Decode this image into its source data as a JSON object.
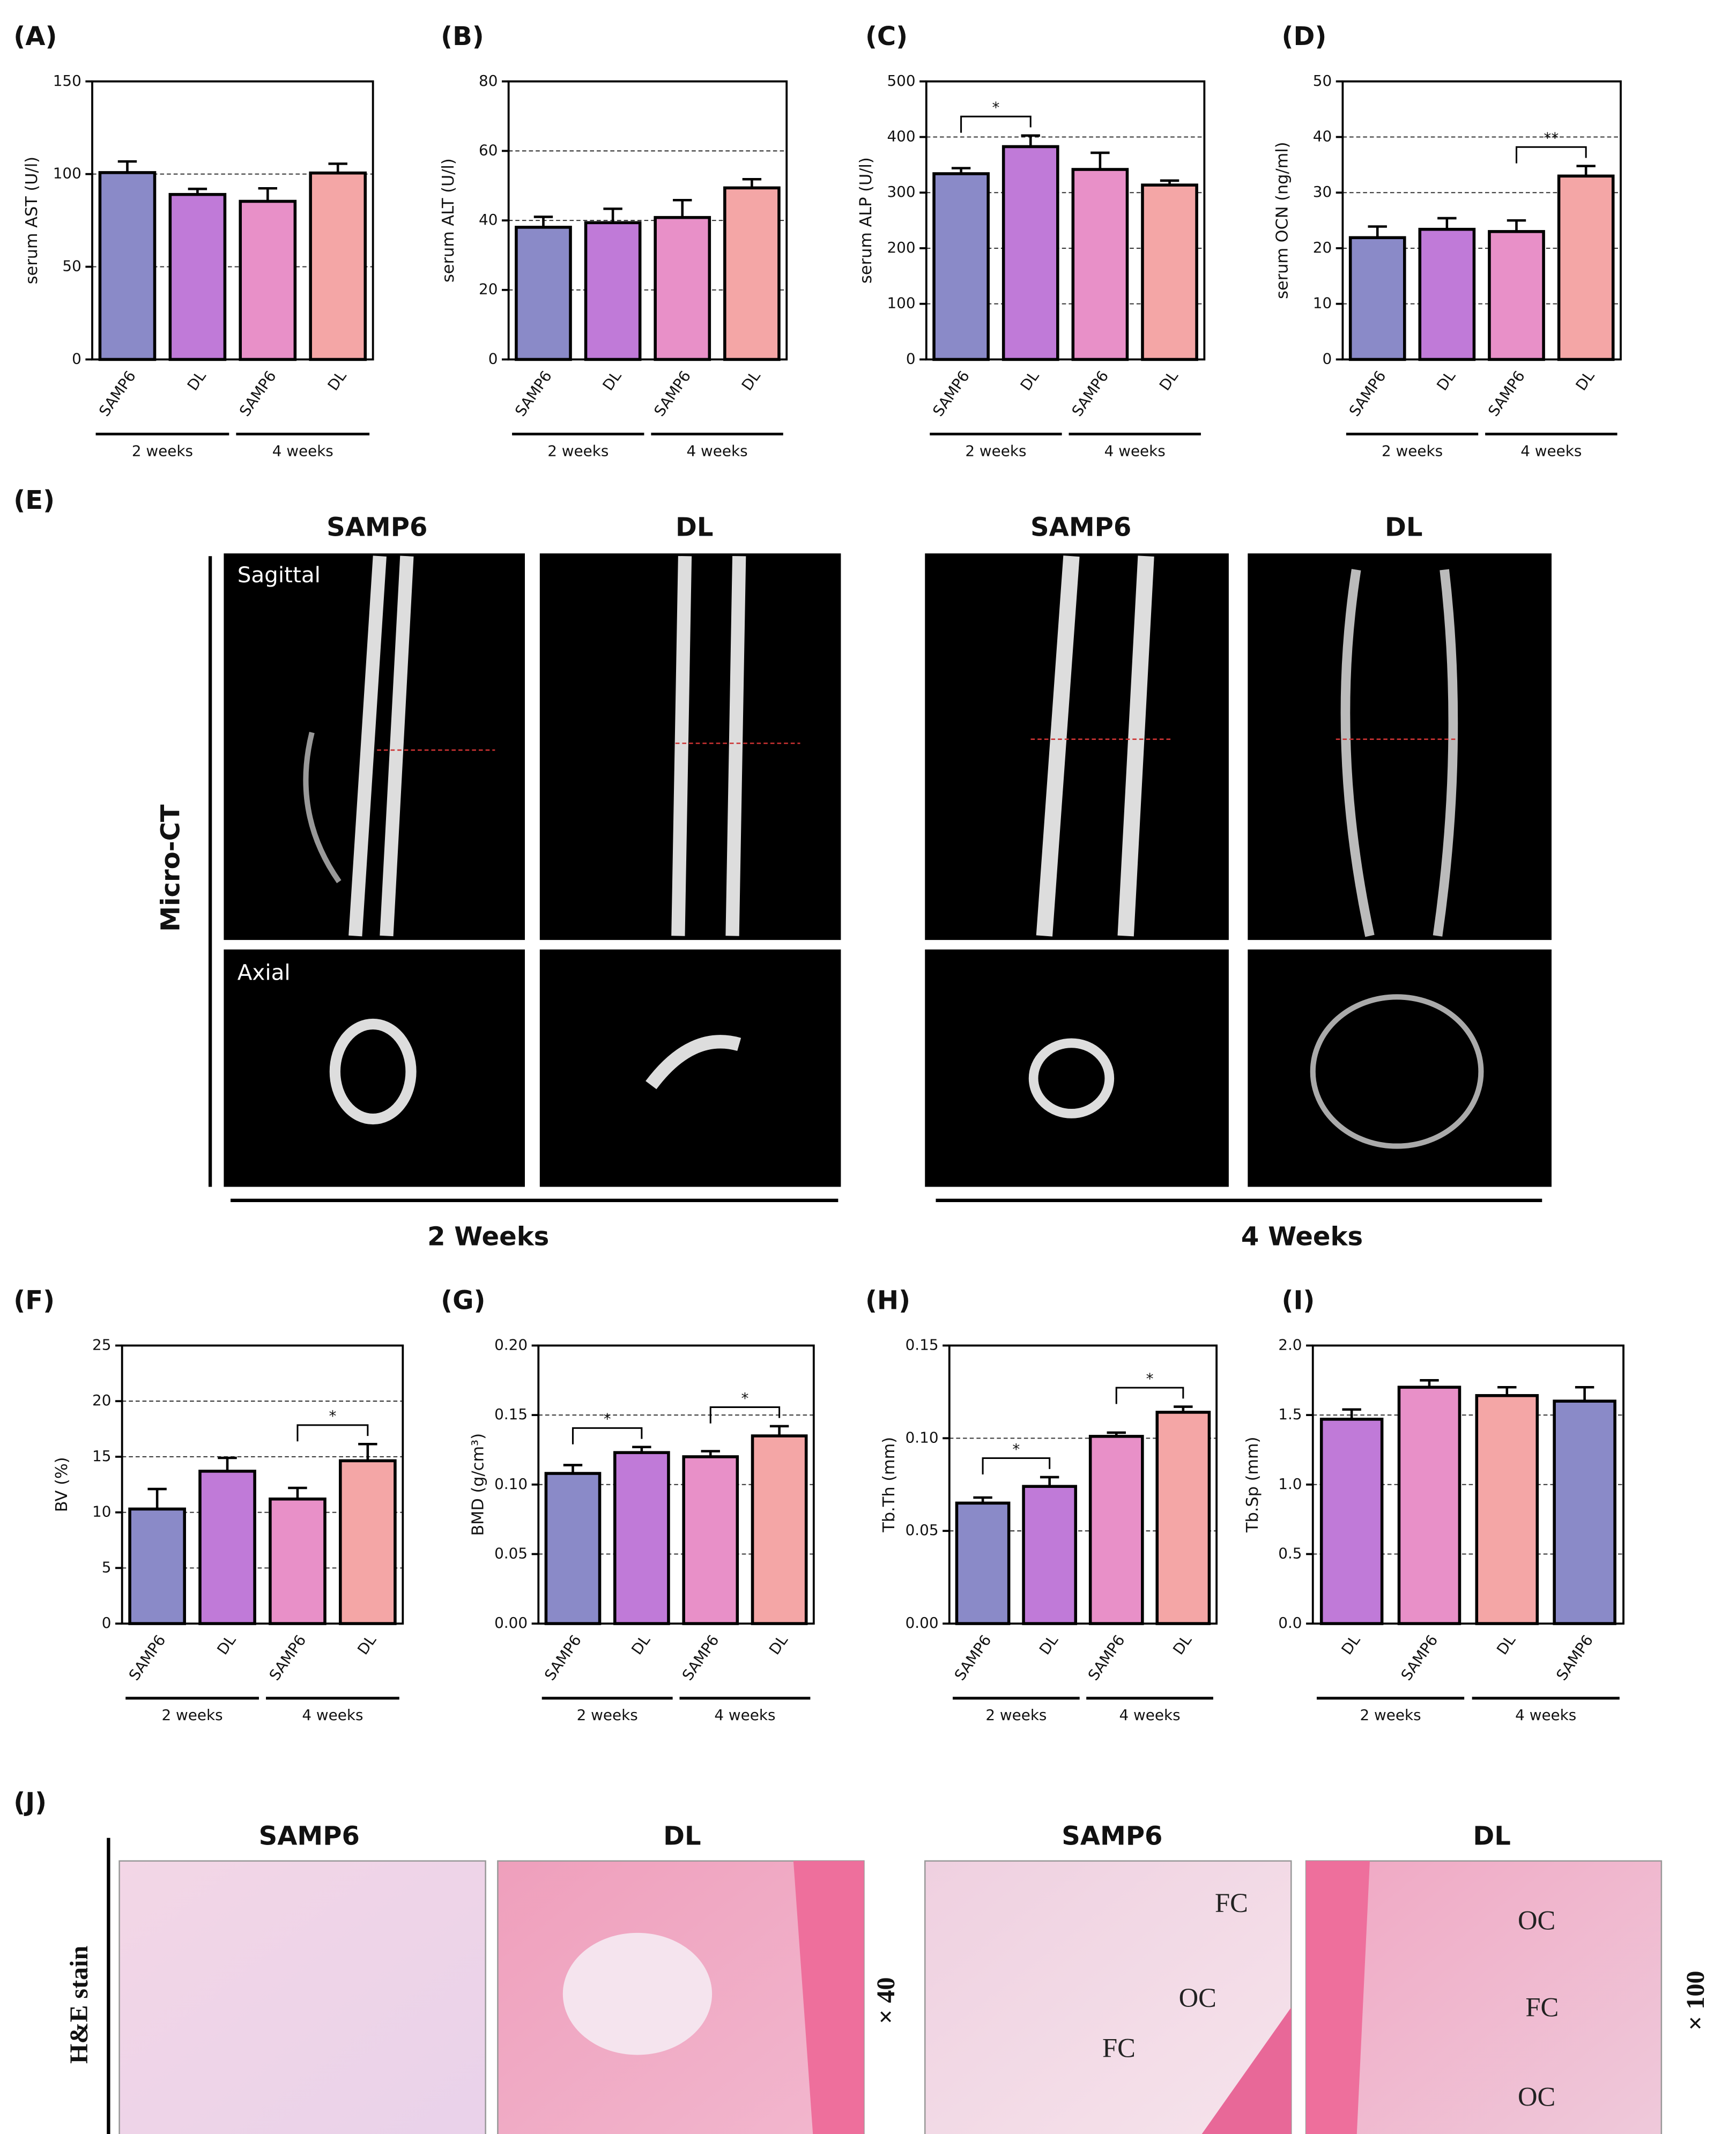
{
  "chart_data": [
    {
      "type": "bar",
      "panel": "(A)",
      "ylabel": "serum AST (U/l)",
      "categories": [
        "SAMP6",
        "DL",
        "SAMP6",
        "DL"
      ],
      "groups": [
        "2 weeks",
        "4 weeks"
      ],
      "values": [
        100.8,
        89,
        85.3,
        100.58
      ],
      "errors": [
        6,
        3,
        7,
        5
      ],
      "colors": [
        "#8a8ac8",
        "#c07ad8",
        "#e890c8",
        "#f4a6a6"
      ],
      "ylim": [
        0,
        150
      ],
      "yticks": [
        0,
        50,
        100,
        150
      ],
      "grid": true,
      "significance": []
    },
    {
      "type": "bar",
      "panel": "(B)",
      "ylabel": "serum ALT (U/l)",
      "categories": [
        "SAMP6",
        "DL",
        "SAMP6",
        "DL"
      ],
      "groups": [
        "2 weeks",
        "4 weeks"
      ],
      "values": [
        38.03,
        39.35,
        40.84,
        49.36
      ],
      "errors": [
        3,
        4,
        5,
        2.5
      ],
      "colors": [
        "#8a8ac8",
        "#c07ad8",
        "#e890c8",
        "#f4a6a6"
      ],
      "ylim": [
        0,
        80
      ],
      "yticks": [
        0,
        20,
        40,
        60,
        80
      ],
      "grid": true,
      "significance": []
    },
    {
      "type": "bar",
      "panel": "(C)",
      "ylabel": "serum ALP (U/l)",
      "categories": [
        "SAMP6",
        "DL",
        "SAMP6",
        "DL"
      ],
      "groups": [
        "2 weeks",
        "4 weeks"
      ],
      "values": [
        334,
        382.7,
        341.65,
        313.6
      ],
      "errors": [
        10,
        20,
        30,
        8
      ],
      "colors": [
        "#8a8ac8",
        "#c07ad8",
        "#e890c8",
        "#f4a6a6"
      ],
      "ylim": [
        0,
        500
      ],
      "yticks": [
        0,
        100,
        200,
        300,
        400,
        500
      ],
      "grid": true,
      "significance": [
        {
          "between": [
            0,
            1
          ],
          "label": "*"
        }
      ]
    },
    {
      "type": "bar",
      "panel": "(D)",
      "ylabel": "serum OCN (ng/ml)",
      "categories": [
        "SAMP6",
        "DL",
        "SAMP6",
        "DL"
      ],
      "groups": [
        "2 weeks",
        "4 weeks"
      ],
      "values": [
        21.9,
        23.4,
        23.0,
        32.98
      ],
      "errors": [
        2,
        2,
        2,
        1.8
      ],
      "colors": [
        "#8a8ac8",
        "#c07ad8",
        "#e890c8",
        "#f4a6a6"
      ],
      "ylim": [
        0,
        50
      ],
      "yticks": [
        0,
        10,
        20,
        30,
        40,
        50
      ],
      "grid": true,
      "significance": [
        {
          "between": [
            2,
            3
          ],
          "label": "**"
        }
      ]
    },
    {
      "type": "bar",
      "panel": "(F)",
      "ylabel": "BV (%)",
      "categories": [
        "SAMP6",
        "DL",
        "SAMP6",
        "DL"
      ],
      "groups": [
        "2 weeks",
        "4 weeks"
      ],
      "values": [
        10.3,
        13.7,
        11.2,
        14.64
      ],
      "errors": [
        1.8,
        1.2,
        1.0,
        1.5
      ],
      "colors": [
        "#8a8ac8",
        "#c07ad8",
        "#e890c8",
        "#f4a6a6"
      ],
      "ylim": [
        0,
        25
      ],
      "yticks": [
        0,
        5,
        10,
        15,
        20,
        25
      ],
      "grid": true,
      "significance": [
        {
          "between": [
            2,
            3
          ],
          "label": "*"
        }
      ]
    },
    {
      "type": "bar",
      "panel": "(G)",
      "ylabel": "BMD (g/cm³)",
      "categories": [
        "SAMP6",
        "DL",
        "SAMP6",
        "DL"
      ],
      "groups": [
        "2 weeks",
        "4 weeks"
      ],
      "values": [
        0.108,
        0.123,
        0.12,
        0.135
      ],
      "errors": [
        0.006,
        0.004,
        0.004,
        0.007
      ],
      "colors": [
        "#8a8ac8",
        "#c07ad8",
        "#e890c8",
        "#f4a6a6"
      ],
      "ylim": [
        0,
        0.2
      ],
      "yticks": [
        {
          "value": 0,
          "label": "0.00"
        },
        {
          "value": 0.05,
          "label": "0.05"
        },
        {
          "value": 0.1,
          "label": "0.10"
        },
        {
          "value": 0.15,
          "label": "0.15"
        },
        {
          "value": 0.2,
          "label": "0.20"
        }
      ],
      "grid": true,
      "significance": [
        {
          "between": [
            0,
            1
          ],
          "label": "*"
        },
        {
          "between": [
            2,
            3
          ],
          "label": "*"
        }
      ]
    },
    {
      "type": "bar",
      "panel": "(H)",
      "ylabel": "Tb.Th (mm)",
      "categories": [
        "SAMP6",
        "DL",
        "SAMP6",
        "DL"
      ],
      "groups": [
        "2 weeks",
        "4 weeks"
      ],
      "values": [
        0.065,
        0.074,
        0.101,
        0.114
      ],
      "errors": [
        0.003,
        0.005,
        0.002,
        0.003
      ],
      "colors": [
        "#8a8ac8",
        "#c07ad8",
        "#e890c8",
        "#f4a6a6"
      ],
      "ylim": [
        0,
        0.15
      ],
      "yticks": [
        {
          "value": 0,
          "label": "0.00"
        },
        {
          "value": 0.05,
          "label": "0.05"
        },
        {
          "value": 0.1,
          "label": "0.10"
        },
        {
          "value": 0.15,
          "label": "0.15"
        }
      ],
      "grid": true,
      "significance": [
        {
          "between": [
            0,
            1
          ],
          "label": "*"
        },
        {
          "between": [
            2,
            3
          ],
          "label": "*"
        }
      ]
    },
    {
      "type": "bar",
      "panel": "(I)",
      "ylabel": "Tb.Sp (mm)",
      "categories": [
        "DL",
        "SAMP6",
        "DL",
        "SAMP6"
      ],
      "groups": [
        "2 weeks",
        "4 weeks"
      ],
      "values": [
        1.47,
        1.7,
        1.64,
        1.6
      ],
      "errors": [
        0.07,
        0.05,
        0.06,
        0.1
      ],
      "colors": [
        "#c07ad8",
        "#e890c8",
        "#f4a6a6",
        "#8a8ac8"
      ],
      "ylim": [
        0,
        2
      ],
      "yticks": [
        {
          "value": 0,
          "label": "0.0"
        },
        {
          "value": 0.5,
          "label": "0.5"
        },
        {
          "value": 1,
          "label": "1.0"
        },
        {
          "value": 1.5,
          "label": "1.5"
        },
        {
          "value": 2,
          "label": "2.0"
        }
      ],
      "grid": true,
      "significance": []
    }
  ],
  "micro_ct": {
    "panel": "(E)",
    "columns": [
      "SAMP6",
      "DL",
      "SAMP6",
      "DL"
    ],
    "views": [
      "Sagittal",
      "Axial"
    ],
    "label": "Micro-CT",
    "groups": [
      "2 Weeks",
      "4 Weeks"
    ]
  },
  "histology": {
    "panel": "(J)",
    "columns": [
      "SAMP6",
      "DL",
      "SAMP6",
      "DL"
    ],
    "stain": "H&E stain",
    "magnifications": [
      "× 40",
      "× 100"
    ],
    "annotations": [
      [],
      [],
      [
        "FC",
        "OC",
        "FC"
      ],
      [
        "OC",
        "FC",
        "OC"
      ]
    ]
  }
}
